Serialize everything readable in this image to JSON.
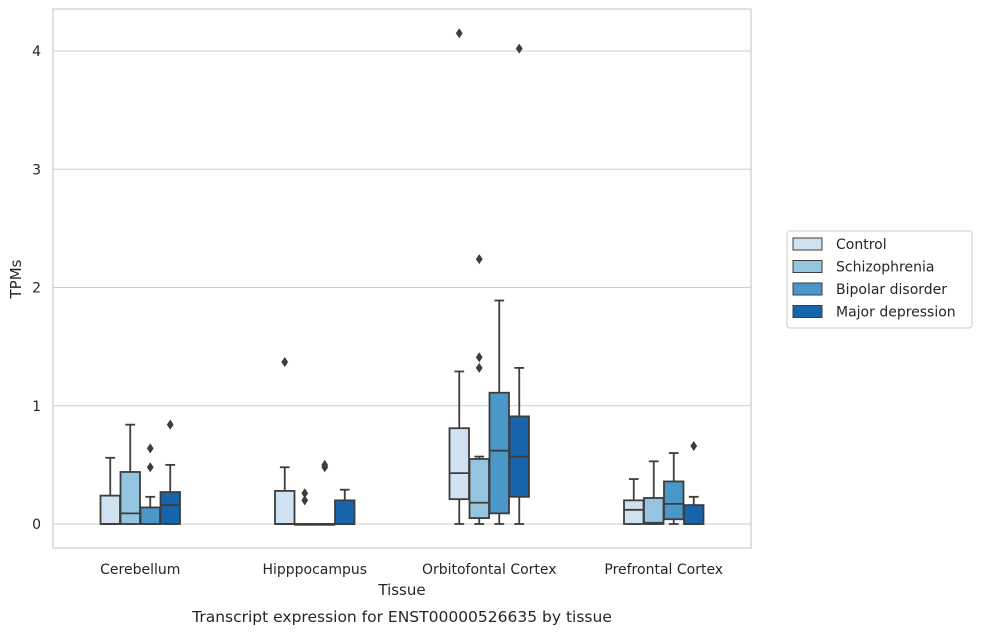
{
  "chart_data": {
    "type": "box",
    "caption": "Transcript expression for ENST00000526635 by tissue",
    "xlabel": "Tissue",
    "ylabel": "TPMs",
    "ylim": [
      -0.2,
      4.35
    ],
    "yticks": [
      0,
      1,
      2,
      3,
      4
    ],
    "grid": "horizontal",
    "legend_position": "right",
    "categories": [
      "Cerebellum",
      "Hipppocampus",
      "Orbitofontal Cortex",
      "Prefrontal Cortex"
    ],
    "series": [
      {
        "name": "Control",
        "color": "#d0e1f2",
        "boxes": [
          {
            "whislo": 0,
            "q1": 0,
            "med": 0,
            "q3": 0.24,
            "whishi": 0.56,
            "fliers": []
          },
          {
            "whislo": 0,
            "q1": 0,
            "med": 0,
            "q3": 0.28,
            "whishi": 0.48,
            "fliers": [
              1.37
            ]
          },
          {
            "whislo": 0,
            "q1": 0.21,
            "med": 0.43,
            "q3": 0.81,
            "whishi": 1.29,
            "fliers": [
              4.15
            ]
          },
          {
            "whislo": 0,
            "q1": 0,
            "med": 0.12,
            "q3": 0.2,
            "whishi": 0.38,
            "fliers": []
          }
        ]
      },
      {
        "name": "Schizophrenia",
        "color": "#94c4df",
        "boxes": [
          {
            "whislo": 0,
            "q1": 0,
            "med": 0.09,
            "q3": 0.44,
            "whishi": 0.84,
            "fliers": []
          },
          {
            "whislo": 0,
            "q1": 0,
            "med": 0,
            "q3": 0,
            "whishi": 0,
            "fliers": [
              0.2,
              0.26
            ]
          },
          {
            "whislo": 0,
            "q1": 0.05,
            "med": 0.18,
            "q3": 0.55,
            "whishi": 0.57,
            "fliers": [
              1.32,
              1.41,
              2.24
            ]
          },
          {
            "whislo": 0,
            "q1": 0,
            "med": 0.01,
            "q3": 0.22,
            "whishi": 0.53,
            "fliers": []
          }
        ]
      },
      {
        "name": "Bipolar disorder",
        "color": "#4a98c9",
        "boxes": [
          {
            "whislo": 0,
            "q1": 0,
            "med": 0,
            "q3": 0.14,
            "whishi": 0.23,
            "fliers": [
              0.48,
              0.64
            ]
          },
          {
            "whislo": 0,
            "q1": 0,
            "med": 0,
            "q3": 0,
            "whishi": 0,
            "fliers": [
              0.48,
              0.5
            ]
          },
          {
            "whislo": 0,
            "q1": 0.09,
            "med": 0.62,
            "q3": 1.11,
            "whishi": 1.89,
            "fliers": []
          },
          {
            "whislo": 0,
            "q1": 0.04,
            "med": 0.17,
            "q3": 0.36,
            "whishi": 0.6,
            "fliers": []
          }
        ]
      },
      {
        "name": "Major depression",
        "color": "#1764ab",
        "boxes": [
          {
            "whislo": 0,
            "q1": 0,
            "med": 0.16,
            "q3": 0.27,
            "whishi": 0.5,
            "fliers": [
              0.84
            ]
          },
          {
            "whislo": 0,
            "q1": 0,
            "med": 0,
            "q3": 0.2,
            "whishi": 0.29,
            "fliers": []
          },
          {
            "whislo": 0,
            "q1": 0.23,
            "med": 0.57,
            "q3": 0.91,
            "whishi": 1.32,
            "fliers": [
              4.02
            ]
          },
          {
            "whislo": 0,
            "q1": 0,
            "med": 0,
            "q3": 0.16,
            "whishi": 0.23,
            "fliers": [
              0.66
            ]
          }
        ]
      }
    ]
  }
}
